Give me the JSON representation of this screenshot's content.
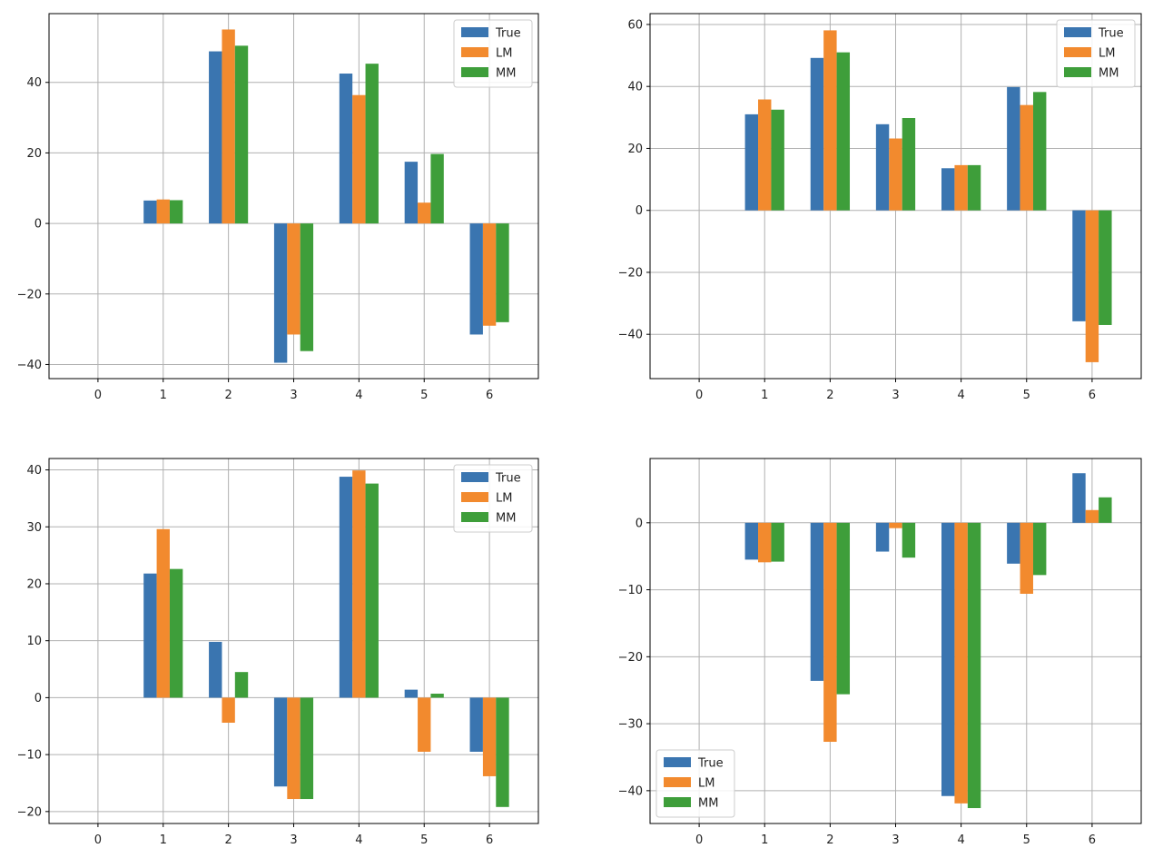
{
  "chart_data": [
    {
      "type": "bar",
      "categories": [
        "0",
        "1",
        "2",
        "3",
        "4",
        "5",
        "6"
      ],
      "series": [
        {
          "name": "True",
          "values": [
            0,
            6.5,
            48.8,
            -39.5,
            42.5,
            17.5,
            -31.5
          ]
        },
        {
          "name": "LM",
          "values": [
            0,
            6.8,
            55.0,
            -31.5,
            36.4,
            5.9,
            -29.0
          ]
        },
        {
          "name": "MM",
          "values": [
            0,
            6.6,
            50.4,
            -36.2,
            45.3,
            19.7,
            -28.0
          ]
        }
      ],
      "ylim": [
        -44.0,
        59.5
      ],
      "yticks": [
        -40,
        -20,
        0,
        20,
        40
      ],
      "grid": true,
      "legend_position": "top-right"
    },
    {
      "type": "bar",
      "categories": [
        "0",
        "1",
        "2",
        "3",
        "4",
        "5",
        "6"
      ],
      "series": [
        {
          "name": "True",
          "values": [
            0,
            31.0,
            49.2,
            27.8,
            13.6,
            39.8,
            -35.8
          ]
        },
        {
          "name": "LM",
          "values": [
            0,
            35.8,
            58.1,
            23.2,
            14.6,
            34.0,
            -49.0
          ]
        },
        {
          "name": "MM",
          "values": [
            0,
            32.5,
            51.0,
            29.8,
            14.6,
            38.2,
            -37.0
          ]
        }
      ],
      "ylim": [
        -54.3,
        63.5
      ],
      "yticks": [
        -40,
        -20,
        0,
        20,
        40,
        60
      ],
      "grid": true,
      "legend_position": "top-right"
    },
    {
      "type": "bar",
      "categories": [
        "0",
        "1",
        "2",
        "3",
        "4",
        "5",
        "6"
      ],
      "series": [
        {
          "name": "True",
          "values": [
            0,
            21.8,
            9.8,
            -15.6,
            38.8,
            1.4,
            -9.5
          ]
        },
        {
          "name": "LM",
          "values": [
            0,
            29.6,
            -4.4,
            -17.8,
            39.9,
            -9.5,
            -13.8
          ]
        },
        {
          "name": "MM",
          "values": [
            0,
            22.6,
            4.5,
            -17.8,
            37.6,
            0.7,
            -19.2
          ]
        }
      ],
      "ylim": [
        -22.1,
        42.0
      ],
      "yticks": [
        -20,
        -10,
        0,
        10,
        20,
        30,
        40
      ],
      "grid": true,
      "legend_position": "top-right"
    },
    {
      "type": "bar",
      "categories": [
        "0",
        "1",
        "2",
        "3",
        "4",
        "5",
        "6"
      ],
      "series": [
        {
          "name": "True",
          "values": [
            0,
            -5.5,
            -23.6,
            -4.3,
            -40.8,
            -6.1,
            7.4
          ]
        },
        {
          "name": "LM",
          "values": [
            0,
            -5.9,
            -32.7,
            -0.8,
            -41.9,
            -10.6,
            1.9
          ]
        },
        {
          "name": "MM",
          "values": [
            0,
            -5.8,
            -25.6,
            -5.2,
            -42.6,
            -7.8,
            3.8
          ]
        }
      ],
      "ylim": [
        -44.9,
        9.6
      ],
      "yticks": [
        -40,
        -30,
        -20,
        -10,
        0
      ],
      "grid": true,
      "legend_position": "bottom-left"
    }
  ],
  "colors": {
    "True": "#3a75b0",
    "LM": "#f28a2e",
    "MM": "#3e9e3a",
    "grid": "#b0b0b0",
    "frame": "#000000"
  }
}
